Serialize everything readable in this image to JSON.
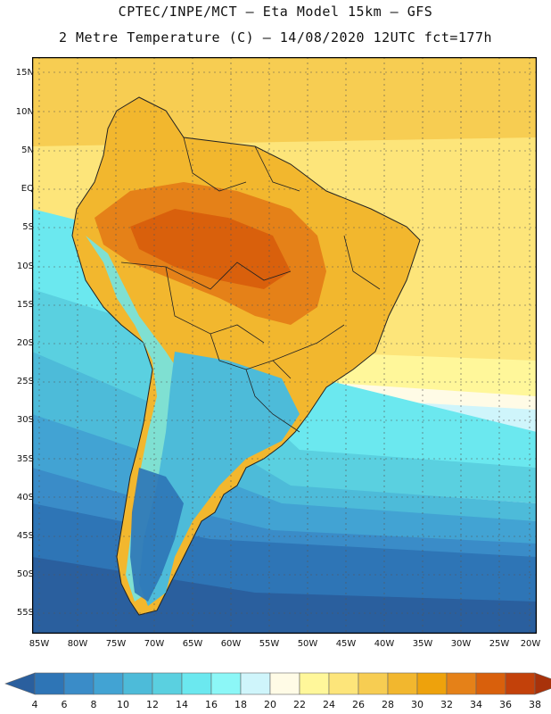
{
  "header": {
    "line1": "CPTEC/INPE/MCT –  Eta Model 15km – GFS",
    "line2": "2 Metre Temperature (C) – 14/08/2020 12UTC fct=177h"
  },
  "map": {
    "region": "South America",
    "lat_ticks": [
      "15N",
      "10N",
      "5N",
      "EQ",
      "5S",
      "10S",
      "15S",
      "20S",
      "25S",
      "30S",
      "35S",
      "40S",
      "45S",
      "50S",
      "55S"
    ],
    "lon_ticks": [
      "85W",
      "80W",
      "75W",
      "70W",
      "65W",
      "60W",
      "55W",
      "50W",
      "45W",
      "40W",
      "35W",
      "30W",
      "25W",
      "20W"
    ]
  },
  "legend": {
    "levels": [
      "4",
      "6",
      "8",
      "10",
      "12",
      "14",
      "16",
      "18",
      "20",
      "22",
      "24",
      "26",
      "28",
      "30",
      "32",
      "34",
      "36",
      "38"
    ],
    "colors": [
      "#2a5f9e",
      "#2e75b6",
      "#3a8cc8",
      "#42a3d3",
      "#4dbbd9",
      "#5ad0e0",
      "#6be8ef",
      "#8cf7f7",
      "#cff5fb",
      "#fffbe6",
      "#fff79a",
      "#fde57a",
      "#f7cd52",
      "#f2b72e",
      "#eea20c",
      "#e58118",
      "#d9600c",
      "#c3410a",
      "#a8320a"
    ]
  }
}
